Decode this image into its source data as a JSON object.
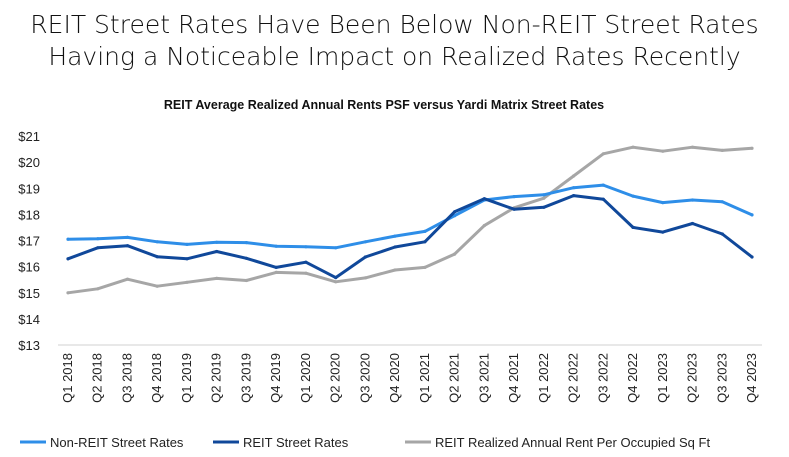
{
  "headline": {
    "line1": "REIT Street Rates Have Been Below Non-REIT Street Rates",
    "line2": "Having a Noticeable Impact on Realized Rates Recently"
  },
  "chart_data": {
    "type": "line",
    "title": "REIT Average Realized Annual Rents PSF versus Yardi Matrix Street Rates",
    "xlabel": "",
    "ylabel": "",
    "ylim": [
      13,
      21
    ],
    "yticks": [
      13,
      14,
      15,
      16,
      17,
      18,
      19,
      20,
      21
    ],
    "ytick_labels": [
      "$13",
      "$14",
      "$15",
      "$16",
      "$17",
      "$18",
      "$19",
      "$20",
      "$21"
    ],
    "grid": false,
    "legend_position": "bottom",
    "categories": [
      "Q1 2018",
      "Q2 2018",
      "Q3 2018",
      "Q4 2018",
      "Q1 2019",
      "Q2 2019",
      "Q3 2019",
      "Q4 2019",
      "Q1 2020",
      "Q2 2020",
      "Q3 2020",
      "Q4 2020",
      "Q1 2021",
      "Q2 2021",
      "Q3 2021",
      "Q4 2021",
      "Q1 2022",
      "Q2 2022",
      "Q3 2022",
      "Q4 2022",
      "Q1 2023",
      "Q2 2023",
      "Q3 2023",
      "Q4 2023"
    ],
    "series": [
      {
        "name": "Non-REIT Street Rates",
        "color": "#2e8ee8",
        "values": [
          17.05,
          17.07,
          17.12,
          16.95,
          16.85,
          16.93,
          16.92,
          16.78,
          16.76,
          16.72,
          16.95,
          17.17,
          17.35,
          17.95,
          18.55,
          18.68,
          18.75,
          19.02,
          19.12,
          18.7,
          18.45,
          18.55,
          18.48,
          17.98
        ]
      },
      {
        "name": "REIT Street Rates",
        "color": "#10489a",
        "values": [
          16.3,
          16.72,
          16.8,
          16.38,
          16.3,
          16.58,
          16.32,
          15.97,
          16.17,
          15.58,
          16.37,
          16.75,
          16.95,
          18.1,
          18.6,
          18.2,
          18.27,
          18.72,
          18.58,
          17.5,
          17.32,
          17.65,
          17.25,
          16.37
        ]
      },
      {
        "name": "REIT Realized Annual Rent Per Occupied Sq Ft",
        "color": "#a6a6a6",
        "values": [
          15.0,
          15.15,
          15.52,
          15.25,
          15.4,
          15.55,
          15.47,
          15.78,
          15.75,
          15.42,
          15.57,
          15.87,
          15.97,
          16.48,
          17.57,
          18.25,
          18.62,
          19.47,
          20.32,
          20.57,
          20.42,
          20.57,
          20.45,
          20.53
        ]
      }
    ]
  }
}
